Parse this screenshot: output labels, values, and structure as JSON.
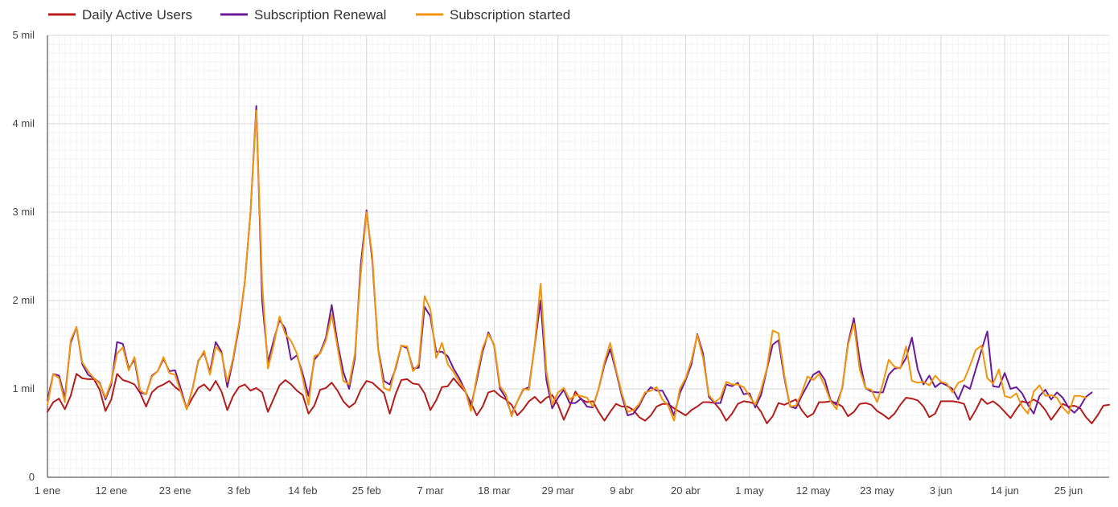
{
  "chart_data": {
    "type": "line",
    "title": "",
    "xlabel": "",
    "ylabel": "",
    "x_start": "1 ene",
    "x_end": "30 jun",
    "x_ticks": [
      "1 ene",
      "12 ene",
      "23 ene",
      "3 feb",
      "14 feb",
      "25 feb",
      "7 mar",
      "18 mar",
      "29 mar",
      "9 abr",
      "20 abr",
      "1 may",
      "12 may",
      "23 may",
      "3 jun",
      "14 jun",
      "25 jun"
    ],
    "y_ticks": [
      {
        "value": 0,
        "label": "0"
      },
      {
        "value": 1000,
        "label": "1 mil"
      },
      {
        "value": 2000,
        "label": "2 mil"
      },
      {
        "value": 3000,
        "label": "3 mil"
      },
      {
        "value": 4000,
        "label": "4 mil"
      },
      {
        "value": 5000,
        "label": "5 mil"
      }
    ],
    "ylim": [
      0,
      5000
    ],
    "grid": true,
    "legend_position": "top-left",
    "series": [
      {
        "name": "Daily Active Users",
        "color": "#b71c1c",
        "values": [
          740,
          850,
          890,
          770,
          920,
          1170,
          1120,
          1110,
          1110,
          990,
          750,
          880,
          1170,
          1100,
          1080,
          1050,
          950,
          800,
          960,
          1020,
          1050,
          1090,
          1020,
          970,
          780,
          900,
          1010,
          1050,
          980,
          1090,
          970,
          760,
          920,
          1020,
          1050,
          980,
          1010,
          960,
          740,
          890,
          1040,
          1100,
          1050,
          980,
          930,
          720,
          810,
          990,
          1010,
          1070,
          980,
          860,
          790,
          840,
          990,
          1090,
          1070,
          1010,
          950,
          720,
          940,
          1100,
          1110,
          1060,
          1050,
          950,
          760,
          870,
          1020,
          1030,
          1120,
          1040,
          970,
          840,
          700,
          800,
          960,
          980,
          920,
          880,
          820,
          700,
          770,
          860,
          910,
          840,
          900,
          930,
          820,
          650,
          800,
          970,
          880,
          850,
          860,
          740,
          640,
          740,
          830,
          800,
          800,
          760,
          680,
          640,
          700,
          800,
          830,
          830,
          780,
          740,
          700,
          760,
          800,
          850,
          850,
          840,
          760,
          640,
          720,
          830,
          860,
          850,
          830,
          740,
          610,
          690,
          840,
          820,
          850,
          880,
          760,
          680,
          720,
          850,
          850,
          860,
          840,
          800,
          690,
          740,
          830,
          840,
          820,
          750,
          710,
          660,
          720,
          820,
          900,
          890,
          870,
          800,
          680,
          720,
          860,
          860,
          860,
          850,
          830,
          650,
          760,
          890,
          830,
          860,
          810,
          740,
          670,
          770,
          860,
          840,
          880,
          840,
          760,
          650,
          740,
          830,
          800,
          810,
          780,
          680,
          610,
          700,
          810,
          820
        ]
      },
      {
        "name": "Subscription Renewal",
        "color": "#6a1b9a",
        "values": [
          870,
          1170,
          1150,
          900,
          1520,
          1700,
          1280,
          1160,
          1120,
          1070,
          880,
          1050,
          1530,
          1510,
          1230,
          1330,
          960,
          940,
          1150,
          1200,
          1340,
          1200,
          1210,
          1000,
          770,
          1000,
          1320,
          1410,
          1190,
          1530,
          1420,
          1020,
          1330,
          1700,
          2200,
          3000,
          4200,
          2000,
          1300,
          1550,
          1780,
          1680,
          1330,
          1380,
          1170,
          920,
          1330,
          1410,
          1580,
          1950,
          1520,
          1190,
          1000,
          1350,
          2400,
          3020,
          2450,
          1450,
          1090,
          1050,
          1230,
          1490,
          1460,
          1230,
          1240,
          1930,
          1820,
          1420,
          1420,
          1370,
          1230,
          1120,
          980,
          800,
          1100,
          1420,
          1640,
          1490,
          1000,
          900,
          710,
          860,
          990,
          1020,
          1500,
          2000,
          1100,
          780,
          900,
          990,
          840,
          840,
          890,
          800,
          790,
          1000,
          1270,
          1450,
          1200,
          920,
          700,
          720,
          810,
          940,
          1020,
          980,
          980,
          860,
          700,
          950,
          1100,
          1280,
          1620,
          1400,
          910,
          840,
          840,
          1050,
          1030,
          1070,
          940,
          950,
          790,
          930,
          1220,
          1500,
          1550,
          1130,
          800,
          780,
          920,
          1040,
          1160,
          1200,
          1100,
          870,
          820,
          1010,
          1520,
          1800,
          1320,
          1010,
          970,
          960,
          960,
          1160,
          1230,
          1240,
          1350,
          1580,
          1220,
          1050,
          1150,
          1020,
          1070,
          1040,
          1000,
          880,
          1040,
          1000,
          1220,
          1440,
          1650,
          1030,
          1020,
          1180,
          1000,
          1020,
          950,
          820,
          720,
          920,
          990,
          880,
          960,
          900,
          790,
          730,
          800,
          910,
          960
        ]
      },
      {
        "name": "Subscription started",
        "color": "#f5930b",
        "values": [
          820,
          1170,
          1120,
          850,
          1550,
          1700,
          1300,
          1200,
          1120,
          1060,
          900,
          1080,
          1400,
          1470,
          1210,
          1360,
          980,
          940,
          1140,
          1200,
          1360,
          1180,
          1160,
          960,
          770,
          1000,
          1310,
          1430,
          1160,
          1480,
          1400,
          1080,
          1350,
          1730,
          2200,
          3000,
          4150,
          2200,
          1230,
          1500,
          1820,
          1620,
          1540,
          1400,
          1120,
          820,
          1370,
          1400,
          1550,
          1840,
          1470,
          1090,
          1050,
          1400,
          2300,
          3000,
          2500,
          1440,
          1010,
          980,
          1250,
          1490,
          1480,
          1200,
          1280,
          2050,
          1900,
          1350,
          1520,
          1280,
          1190,
          1080,
          980,
          750,
          1140,
          1460,
          1620,
          1500,
          1030,
          940,
          690,
          860,
          1000,
          990,
          1510,
          2190,
          1200,
          820,
          960,
          1010,
          880,
          930,
          920,
          900,
          800,
          1000,
          1300,
          1520,
          1220,
          950,
          740,
          760,
          830,
          960,
          980,
          1020,
          880,
          810,
          640,
          1000,
          1120,
          1320,
          1610,
          1350,
          930,
          850,
          900,
          1080,
          1050,
          1050,
          1020,
          920,
          820,
          990,
          1230,
          1660,
          1630,
          1160,
          800,
          810,
          950,
          1140,
          1100,
          1170,
          1030,
          860,
          770,
          1020,
          1500,
          1740,
          1220,
          1010,
          990,
          850,
          1060,
          1330,
          1250,
          1230,
          1480,
          1090,
          1070,
          1080,
          1040,
          1150,
          1080,
          1060,
          960,
          1070,
          1100,
          1260,
          1440,
          1490,
          1120,
          1060,
          1220,
          920,
          900,
          950,
          800,
          720,
          970,
          1040,
          920,
          930,
          900,
          790,
          720,
          920,
          920,
          900
        ]
      }
    ]
  }
}
